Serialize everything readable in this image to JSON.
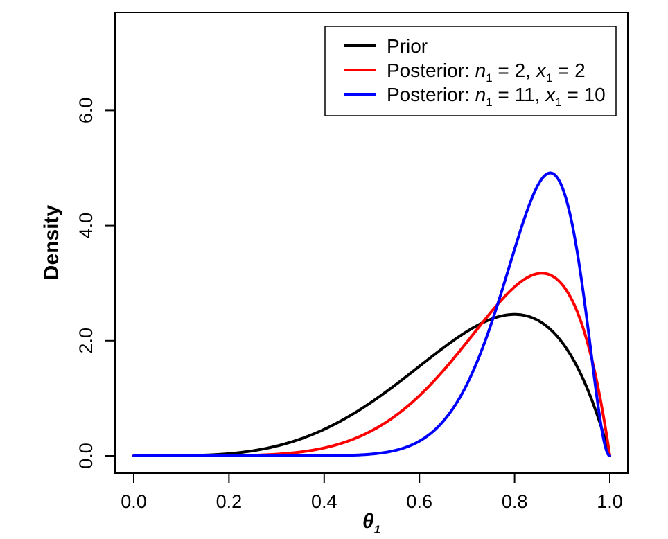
{
  "chart_data": {
    "type": "line",
    "xlabel": "θ",
    "xlabel_subscript": "1",
    "ylabel": "Density",
    "xlim": [
      0.0,
      1.0
    ],
    "ylim": [
      0.0,
      7.5
    ],
    "xticks": [
      0.0,
      0.2,
      0.4,
      0.6,
      0.8,
      1.0
    ],
    "xtick_labels": [
      "0.0",
      "0.2",
      "0.4",
      "0.6",
      "0.8",
      "1.0"
    ],
    "yticks": [
      0.0,
      2.0,
      4.0,
      6.0
    ],
    "ytick_labels": [
      "0.0",
      "2.0",
      "4.0",
      "6.0"
    ],
    "legend_position": "top-right",
    "series": [
      {
        "name": "Prior",
        "color": "#000000",
        "beta": [
          5,
          2
        ],
        "legend": {
          "parts": [
            {
              "t": "Prior"
            }
          ]
        }
      },
      {
        "name": "Posterior: n1 = 2, x1 = 2",
        "color": "#ff0000",
        "beta": [
          7,
          2
        ],
        "legend": {
          "parts": [
            {
              "t": "Posterior: "
            },
            {
              "t": "n",
              "i": true
            },
            {
              "t": "1",
              "s": true
            },
            {
              "t": " = 2, "
            },
            {
              "t": "x",
              "i": true
            },
            {
              "t": "1",
              "s": true
            },
            {
              "t": " = 2"
            }
          ]
        }
      },
      {
        "name": "Posterior: n1 = 11, x1 = 10",
        "color": "#0000ff",
        "beta": [
          15,
          3
        ],
        "legend": {
          "parts": [
            {
              "t": "Posterior: "
            },
            {
              "t": "n",
              "i": true
            },
            {
              "t": "1",
              "s": true
            },
            {
              "t": " = 11, "
            },
            {
              "t": "x",
              "i": true
            },
            {
              "t": "1",
              "s": true
            },
            {
              "t": " = 10"
            }
          ]
        }
      }
    ]
  }
}
